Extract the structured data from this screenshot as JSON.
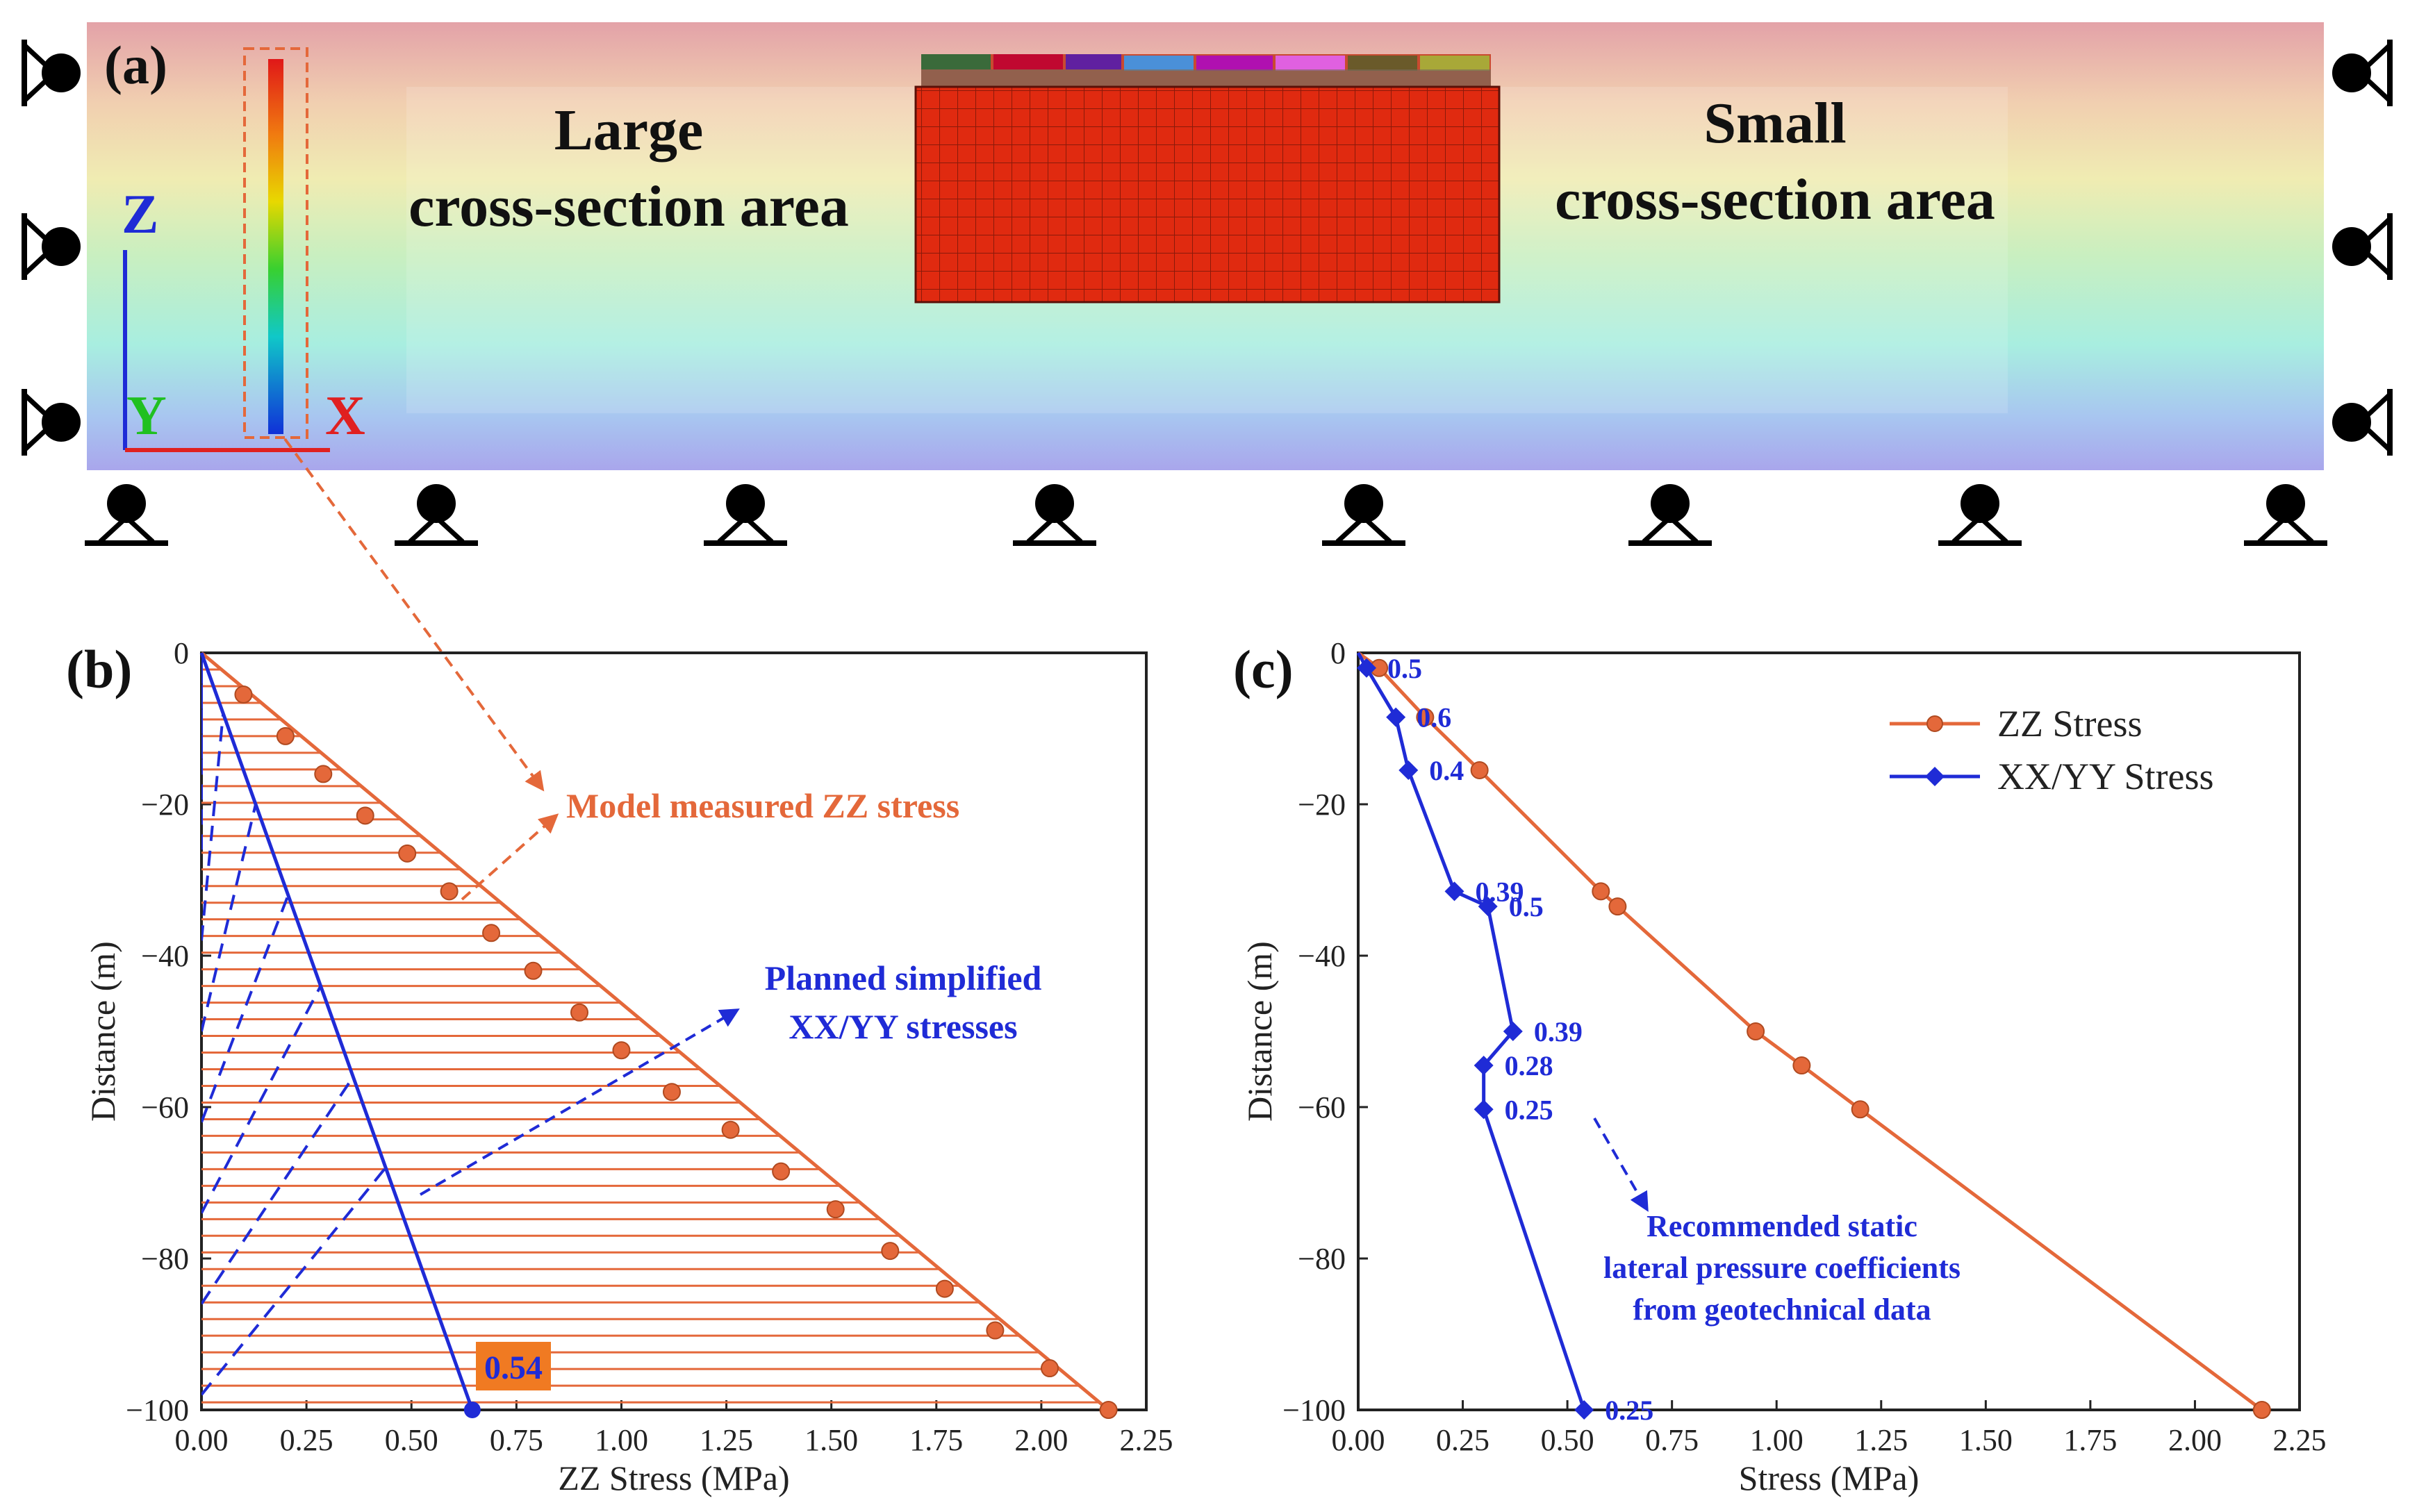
{
  "panel_a": {
    "label": "(a)",
    "left_area_line1": "Large",
    "left_area_line2": "cross-section area",
    "right_area_line1": "Small",
    "right_area_line2": "cross-section area",
    "axis_z": "Z",
    "axis_y": "Y",
    "axis_x": "X"
  },
  "annotations": {
    "model_zz": "Model measured ZZ stress",
    "planned_line1": "Planned simplified",
    "planned_line2": "XX/YY stresses",
    "value_054": "0.54",
    "rec_line1": "Recommended static",
    "rec_line2": "lateral pressure coefficients",
    "rec_line3": "from geotechnical data"
  },
  "colors": {
    "zz": "#e4683a",
    "xx": "#1f2bd6"
  },
  "chart_data": [
    {
      "type": "line",
      "panel": "(b)",
      "xlabel": "ZZ Stress (MPa)",
      "ylabel": "Distance (m)",
      "xlim": [
        0,
        2.25
      ],
      "ylim": [
        -100,
        0
      ],
      "xticks": [
        "0.00",
        "0.25",
        "0.50",
        "0.75",
        "1.00",
        "1.25",
        "1.50",
        "1.75",
        "2.00",
        "2.25"
      ],
      "yticks": [
        "0",
        "-20",
        "-40",
        "-60",
        "-80",
        "-100"
      ],
      "series": [
        {
          "name": "Model measured ZZ stress",
          "x": [
            0,
            0.1,
            0.2,
            0.29,
            0.39,
            0.49,
            0.59,
            0.69,
            0.79,
            0.9,
            1.0,
            1.12,
            1.26,
            1.38,
            1.51,
            1.64,
            1.77,
            1.89,
            2.02,
            2.16
          ],
          "y": [
            0,
            -5.5,
            -11,
            -16,
            -21.5,
            -26.5,
            -31.5,
            -37,
            -42,
            -47.5,
            -52.5,
            -58,
            -63,
            -68.5,
            -73.5,
            -79,
            -84,
            -89.5,
            -94.5,
            -100
          ]
        },
        {
          "name": "Planned simplified XX/YY stresses",
          "x": [
            0,
            0.645
          ],
          "y": [
            0,
            -100
          ]
        }
      ]
    },
    {
      "type": "line",
      "panel": "(c)",
      "xlabel": "Stress (MPa)",
      "ylabel": "Distance (m)",
      "xlim": [
        0,
        2.25
      ],
      "ylim": [
        -100,
        0
      ],
      "xticks": [
        "0.00",
        "0.25",
        "0.50",
        "0.75",
        "1.00",
        "1.25",
        "1.50",
        "1.75",
        "2.00",
        "2.25"
      ],
      "yticks": [
        "0",
        "-20",
        "-40",
        "-60",
        "-80",
        "-100"
      ],
      "legend": [
        "ZZ Stress",
        "XX/YY Stress"
      ],
      "series": [
        {
          "name": "ZZ Stress",
          "x": [
            0.05,
            0.16,
            0.29,
            0.58,
            0.62,
            0.95,
            1.06,
            1.2,
            2.16
          ],
          "y": [
            -2,
            -8.5,
            -15.5,
            -31.5,
            -33.5,
            -50,
            -54.5,
            -60.3,
            -100
          ]
        },
        {
          "name": "XX/YY Stress",
          "x": [
            0.02,
            0.09,
            0.12,
            0.23,
            0.31,
            0.37,
            0.3,
            0.3,
            0.54
          ],
          "y": [
            -2,
            -8.5,
            -15.5,
            -31.5,
            -33.5,
            -50,
            -54.5,
            -60.3,
            -100
          ],
          "labels": [
            "0.5",
            "0.6",
            "0.4",
            "0.39",
            "0.5",
            "0.39",
            "0.28",
            "0.25",
            "0.25"
          ]
        }
      ]
    }
  ]
}
